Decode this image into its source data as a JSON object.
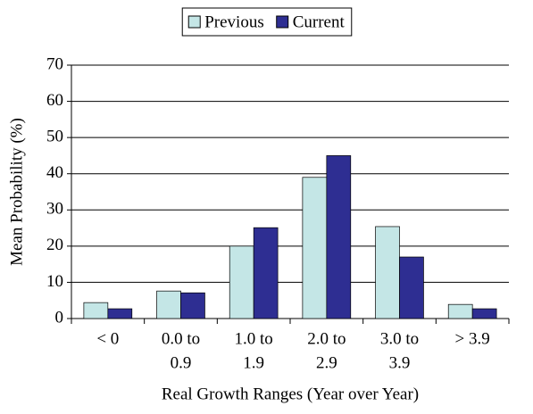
{
  "chart_data": {
    "type": "bar",
    "x_label": "Real Growth Ranges (Year over Year)",
    "y_label": "Mean Probability (%)",
    "categories": [
      [
        "< 0"
      ],
      [
        "0.0 to",
        "0.9"
      ],
      [
        "1.0 to",
        "1.9"
      ],
      [
        "2.0 to",
        "2.9"
      ],
      [
        "3.0 to",
        "3.9"
      ],
      [
        "> 3.9"
      ]
    ],
    "series": [
      {
        "name": "Previous",
        "color": "#c4e6e6",
        "values": [
          4.4,
          7.6,
          20,
          39,
          25.4,
          3.9
        ]
      },
      {
        "name": "Current",
        "color": "#2e2e92",
        "values": [
          2.7,
          7.1,
          25.1,
          45,
          17,
          2.7
        ]
      }
    ],
    "ylim": [
      0,
      70
    ],
    "yticks": [
      0,
      10,
      20,
      30,
      40,
      50,
      60,
      70
    ],
    "grid": true,
    "legend": "top"
  }
}
